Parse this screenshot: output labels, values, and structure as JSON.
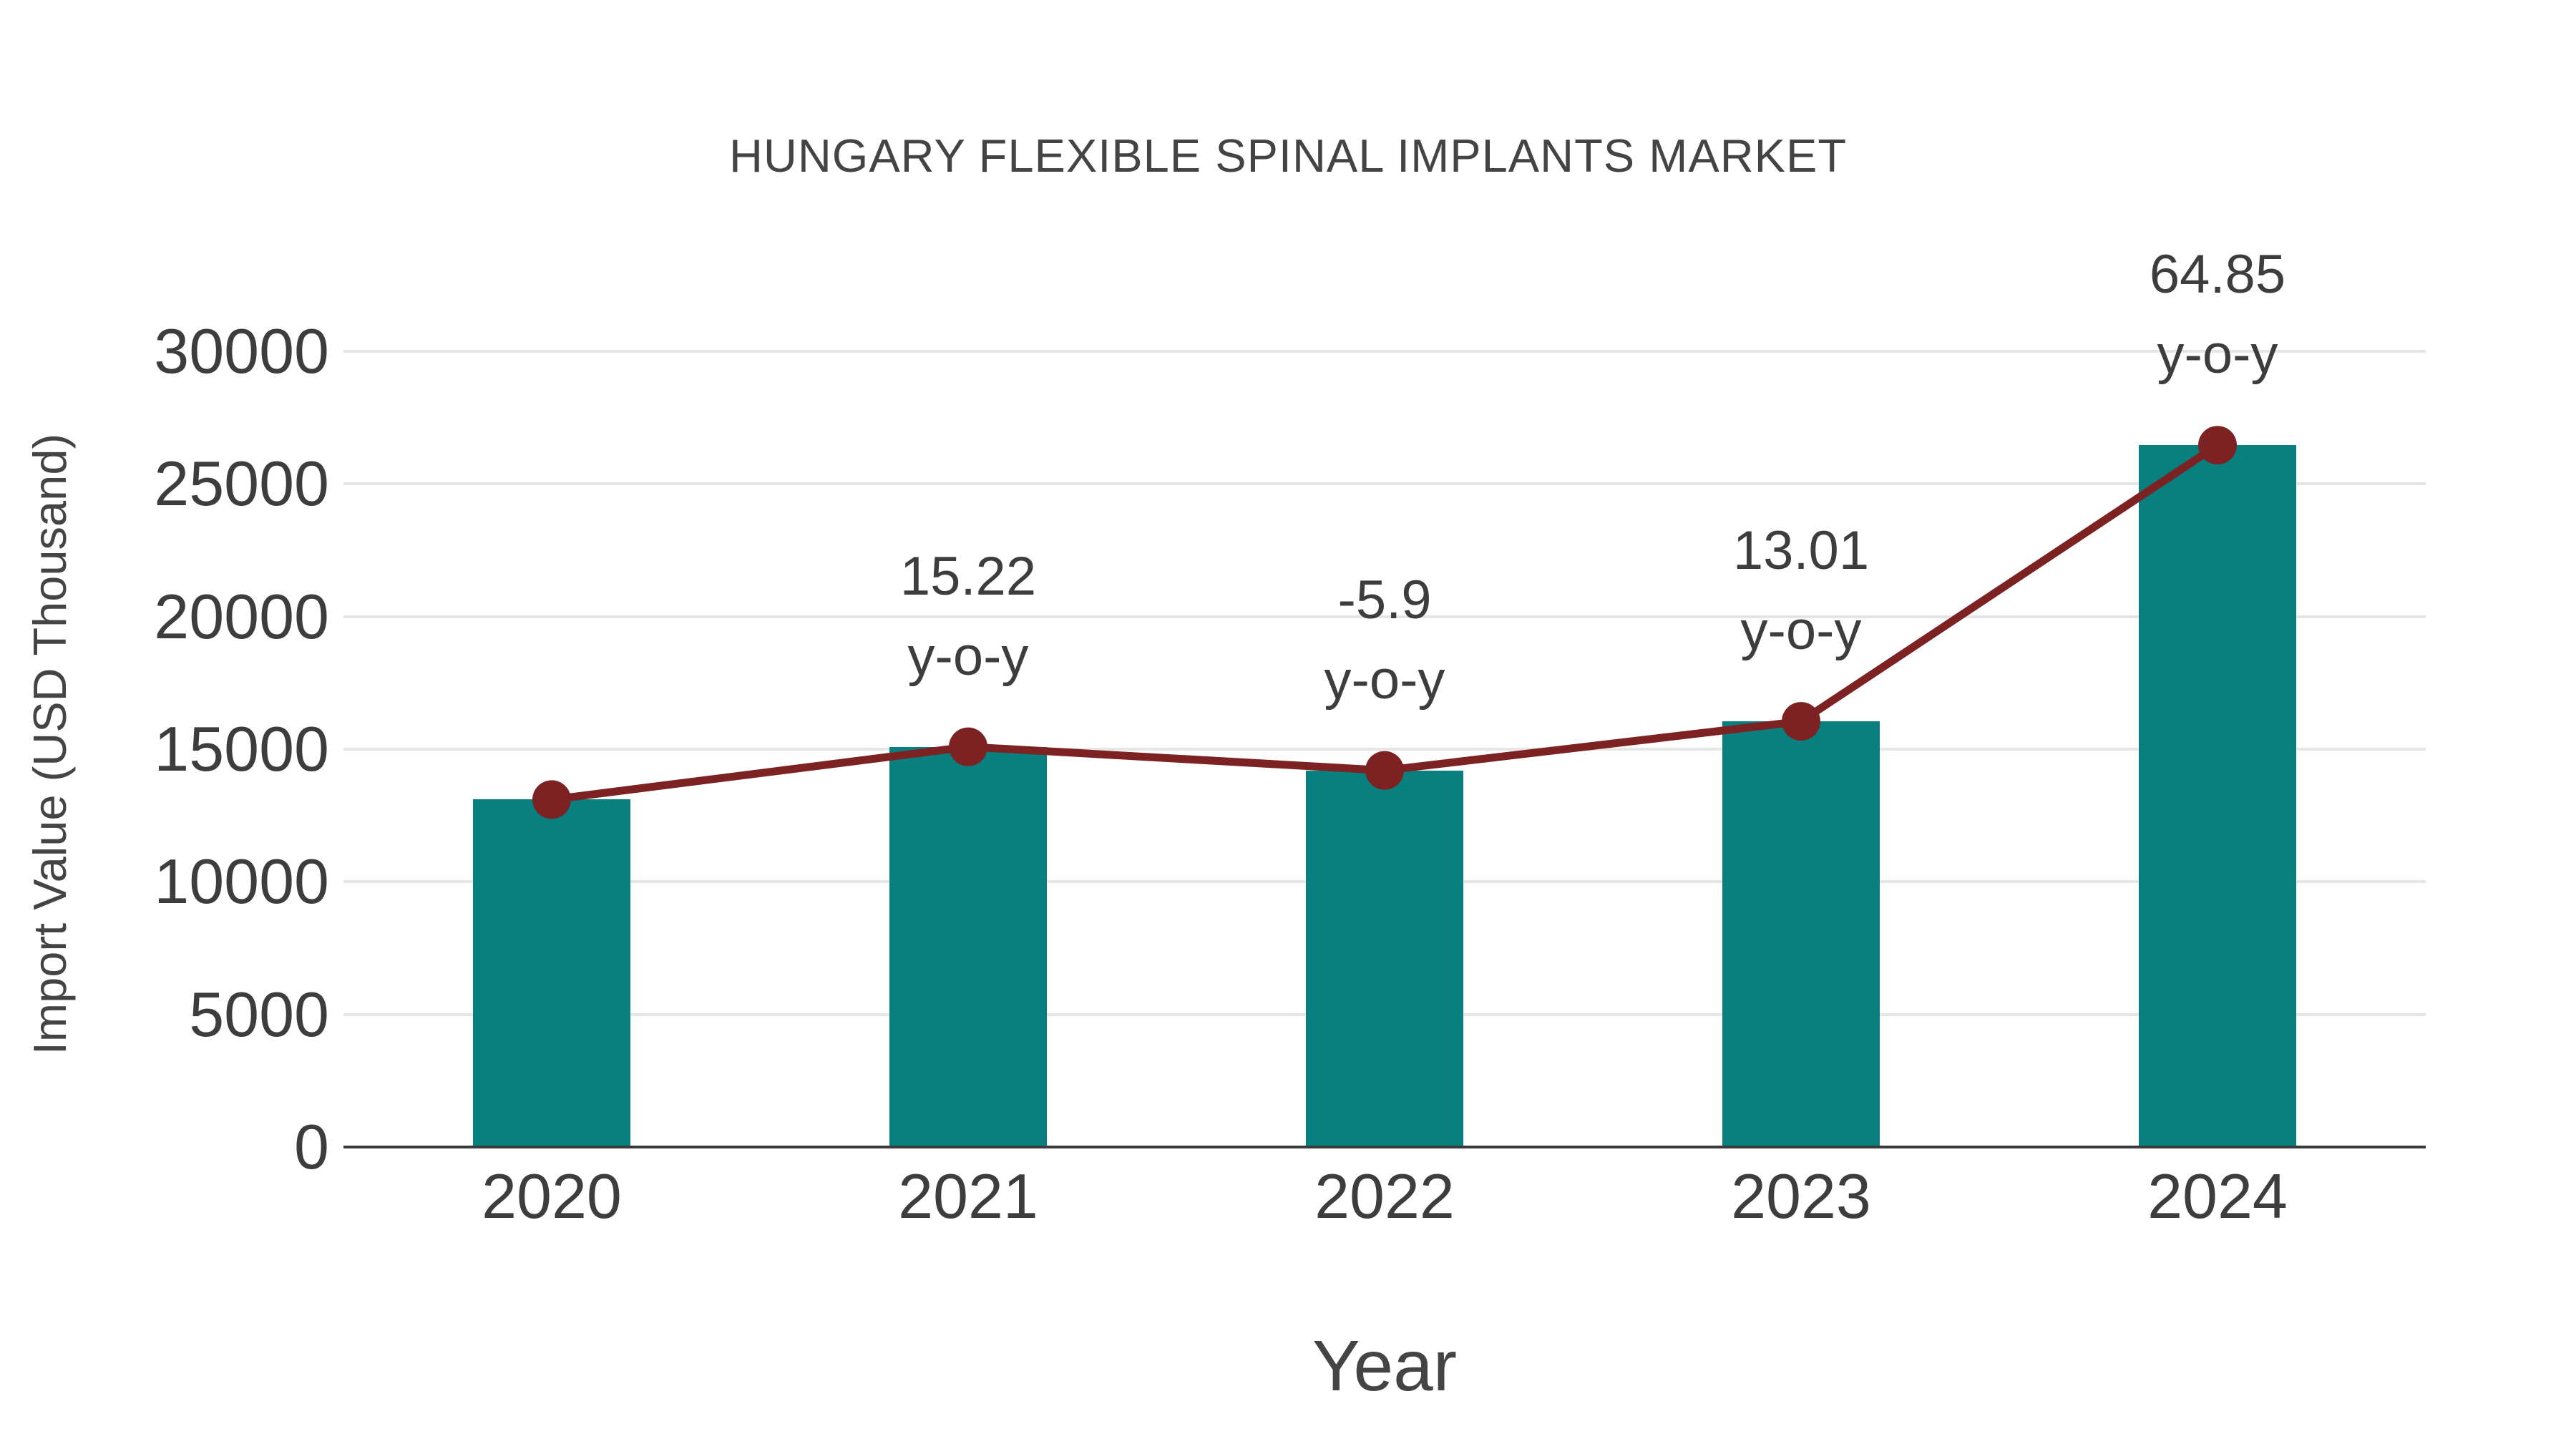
{
  "chart_data": {
    "type": "bar",
    "title": "HUNGARY FLEXIBLE SPINAL IMPLANTS MARKET",
    "xlabel": "Year",
    "ylabel": "Import Value (USD Thousand)",
    "categories": [
      "2020",
      "2021",
      "2022",
      "2023",
      "2024"
    ],
    "series": [
      {
        "name": "Import Value",
        "type": "bar",
        "color": "#088080",
        "values": [
          13100,
          15090,
          14200,
          16050,
          26460
        ]
      },
      {
        "name": "Trend",
        "type": "line",
        "color": "#7d2222",
        "values": [
          13100,
          15090,
          14200,
          16050,
          26460
        ]
      }
    ],
    "annotations": [
      {
        "category": "2021",
        "value": "15.22",
        "suffix": "y-o-y"
      },
      {
        "category": "2022",
        "value": "-5.9",
        "suffix": "y-o-y"
      },
      {
        "category": "2023",
        "value": "13.01",
        "suffix": "y-o-y"
      },
      {
        "category": "2024",
        "value": "64.85",
        "suffix": "y-o-y"
      }
    ],
    "ylim": [
      0,
      30000
    ],
    "yticks": [
      0,
      5000,
      10000,
      15000,
      20000,
      25000,
      30000
    ],
    "grid": "horizontal",
    "legend": "none",
    "colors": {
      "bar": "#088080",
      "line": "#7d2222",
      "text": "#3d3d3d",
      "gridline": "#e6e6e6",
      "axis": "#3a3a3a",
      "background": "#ffffff"
    }
  }
}
